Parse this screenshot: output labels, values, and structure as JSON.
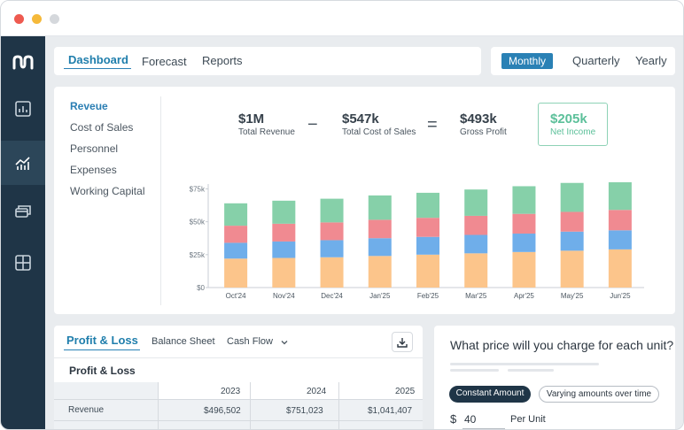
{
  "nav": {
    "tabs": [
      {
        "label": "Dashboard",
        "active": true
      },
      {
        "label": "Forecast",
        "active": false
      },
      {
        "label": "Reports",
        "active": false
      }
    ],
    "periods": [
      {
        "label": "Monthly",
        "active": true
      },
      {
        "label": "Quarterly",
        "active": false
      },
      {
        "label": "Yearly",
        "active": false
      }
    ]
  },
  "sidebar": {
    "icons": [
      "logo-icon",
      "calculator-icon",
      "analytics-icon",
      "cards-icon",
      "grid-icon"
    ]
  },
  "revenue_card": {
    "menu": [
      {
        "label": "Reveue",
        "active": true
      },
      {
        "label": "Cost of Sales",
        "active": false
      },
      {
        "label": "Personnel",
        "active": false
      },
      {
        "label": "Expenses",
        "active": false
      },
      {
        "label": "Working Capital",
        "active": false
      }
    ],
    "metrics": {
      "total_revenue": {
        "value": "$1M",
        "label": "Total Revenue"
      },
      "minus": "−",
      "total_cost": {
        "value": "$547k",
        "label": "Total Cost of Sales"
      },
      "equals": "=",
      "gross_profit": {
        "value": "$493k",
        "label": "Gross Profit"
      },
      "net_income": {
        "value": "$205k",
        "label": "Net Income"
      }
    }
  },
  "chart_data": {
    "type": "bar",
    "stacked": true,
    "categories": [
      "Oct'24",
      "Nov'24",
      "Dec'24",
      "Jan'25",
      "Feb'25",
      "Mar'25",
      "Apr'25",
      "May'25",
      "Jun'25"
    ],
    "yticks": [
      "$0",
      "$25k",
      "$50k",
      "$75k"
    ],
    "ylim": [
      0,
      80000
    ],
    "series": [
      {
        "color": "#fcc58b",
        "values": [
          22000,
          22500,
          23000,
          24000,
          25000,
          26000,
          27000,
          28000,
          29000
        ]
      },
      {
        "color": "#6faeea",
        "values": [
          12000,
          12500,
          13000,
          13500,
          13500,
          14000,
          14000,
          14500,
          14500
        ]
      },
      {
        "color": "#f08a91",
        "values": [
          13000,
          13500,
          13500,
          14000,
          14500,
          14500,
          15000,
          15000,
          15500
        ]
      },
      {
        "color": "#86d0a9",
        "values": [
          17000,
          17500,
          18000,
          18500,
          19000,
          20000,
          21000,
          22000,
          23000
        ]
      }
    ],
    "grid": false
  },
  "pl_card": {
    "tabs": [
      {
        "label": "Profit & Loss",
        "active": true
      },
      {
        "label": "Balance Sheet",
        "active": false
      },
      {
        "label": "Cash Flow",
        "active": false
      }
    ],
    "title": "Profit & Loss",
    "columns": [
      "2023",
      "2024",
      "2025"
    ],
    "rows": [
      {
        "label": "Revenue",
        "values": [
          "$496,502",
          "$751,023",
          "$1,041,407"
        ]
      }
    ]
  },
  "price_card": {
    "question": "What price will you charge for each unit?",
    "options": [
      {
        "label": "Constant Amount",
        "active": true
      },
      {
        "label": "Varying amounts over time",
        "active": false
      }
    ],
    "currency": "$",
    "amount": "40",
    "unit_label": "Per Unit"
  },
  "colors": {
    "accent": "#2a81b5",
    "sidebar": "#1f3547",
    "net_income": "#5cc09a"
  }
}
